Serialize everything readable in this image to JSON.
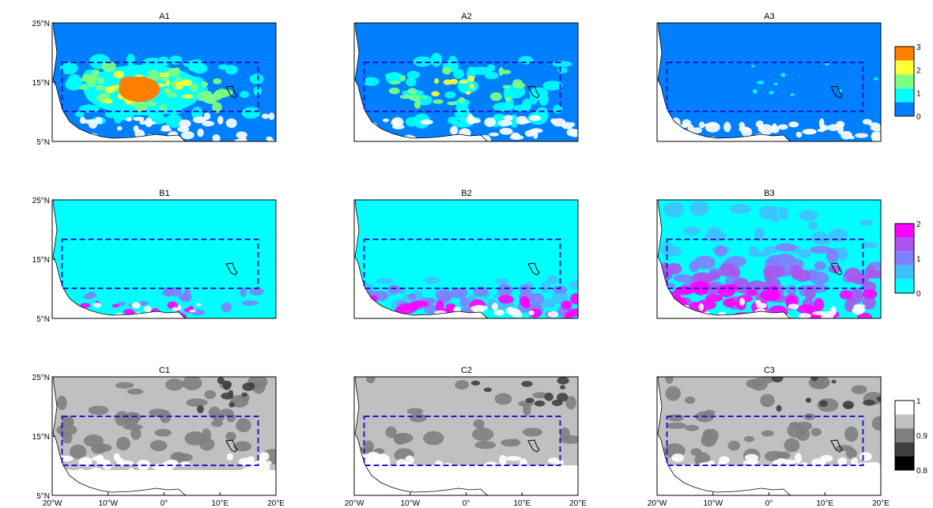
{
  "panel_titles": [
    "A1",
    "A2",
    "A3",
    "B1",
    "B2",
    "B3",
    "C1",
    "C2",
    "C3"
  ],
  "y_ticks": [
    "25°N",
    "15°N",
    "5°N"
  ],
  "x_ticks": [
    "20°W",
    "10°W",
    "0°",
    "10°E",
    "20°E"
  ],
  "colorbars": [
    {
      "row": "A",
      "labels": [
        "3",
        "2",
        "1",
        "0"
      ],
      "colors": [
        "#ff7f00",
        "#ffff33",
        "#7fff7f",
        "#00ffff",
        "#0080ff"
      ]
    },
    {
      "row": "B",
      "labels": [
        "2",
        "1",
        "0"
      ],
      "colors": [
        "#ff00ff",
        "#aa55ee",
        "#7f7fff",
        "#40c0ff",
        "#00ffff"
      ]
    },
    {
      "row": "C",
      "labels": [
        "1",
        "0.9",
        "0.8"
      ],
      "colors": [
        "#ffffff",
        "#c0c0c0",
        "#808080",
        "#404040",
        "#000000"
      ]
    }
  ],
  "colors": {
    "box": "#1e1ec8",
    "a_base": "#0080ff",
    "a_c1": "#00ffff",
    "a_c2": "#7fff7f",
    "a_c3": "#ffff33",
    "a_c4": "#ff7f00",
    "b_base": "#00ffff",
    "b_c1": "#40c0ff",
    "b_c2": "#7f7fff",
    "b_c3": "#aa55ee",
    "b_c4": "#ff00ff",
    "c_base": "#c0c0c0",
    "c_c1": "#808080",
    "c_c2": "#404040",
    "c_c3": "#ffffff"
  }
}
